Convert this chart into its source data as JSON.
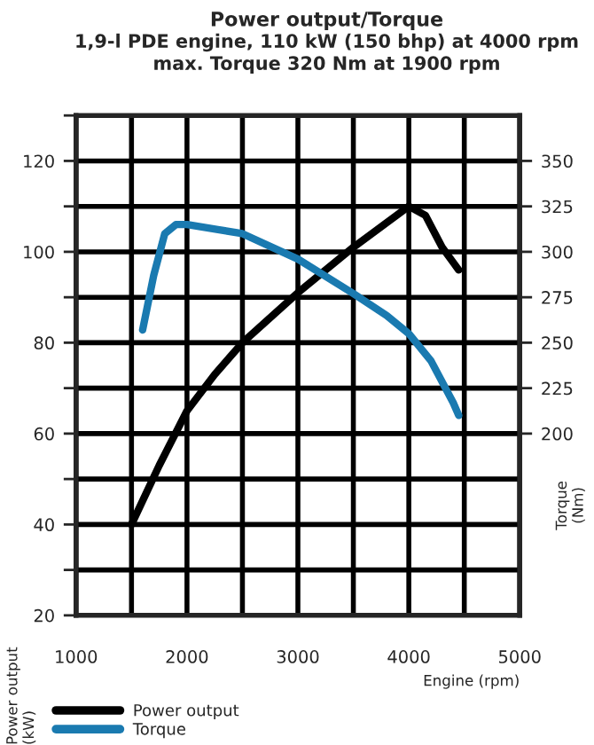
{
  "chart_data": {
    "type": "line",
    "title": "Power output/Torque",
    "subtitle": "1,9-l PDE engine, 110 kW (150 bhp) at 4000 rpm\nmax. Torque 320 Nm at 1900 rpm",
    "xlabel": "Engine (rpm)",
    "ylabel": "Power output\n(kW)",
    "y2label": "Torque\n(Nm)",
    "series": [
      {
        "name": "Power output",
        "color": "#000000",
        "x": [
          1500,
          1750,
          2000,
          2250,
          2500,
          3000,
          3500,
          4000,
          4150,
          4300,
          4450
        ],
        "values": [
          40,
          53,
          65,
          73,
          80,
          91,
          101,
          110,
          108,
          101,
          96
        ]
      },
      {
        "name": "Torque",
        "color": "#1a7ab0",
        "axis": "y2",
        "x": [
          1600,
          1700,
          1800,
          1900,
          2000,
          2500,
          3000,
          3500,
          3800,
          4000,
          4200,
          4400,
          4450
        ],
        "values": [
          257,
          287,
          310,
          315,
          315,
          310,
          296,
          277,
          265,
          255,
          240,
          217,
          210
        ]
      }
    ],
    "xlim": [
      1000,
      5000
    ],
    "xticks": [
      1000,
      {
        "value": 1500,
        "label": null
      },
      2000,
      {
        "value": 2500,
        "label": null
      },
      3000,
      {
        "value": 3500,
        "label": null
      },
      4000,
      {
        "value": 4500,
        "label": null
      },
      5000
    ],
    "ylim": [
      20,
      130
    ],
    "yticks": [
      20,
      {
        "value": 30,
        "label": null
      },
      40,
      {
        "value": 50,
        "label": null
      },
      60,
      {
        "value": 70,
        "label": null
      },
      80,
      {
        "value": 90,
        "label": null
      },
      100,
      {
        "value": 110,
        "label": null
      },
      120,
      {
        "value": 130,
        "label": null
      }
    ],
    "y2lim": [
      100,
      375
    ],
    "y2ticks": [
      200,
      225,
      250,
      275,
      300,
      325,
      350
    ],
    "grid": true,
    "legend": "bottom left",
    "line_style": "solid",
    "marker": "none"
  }
}
